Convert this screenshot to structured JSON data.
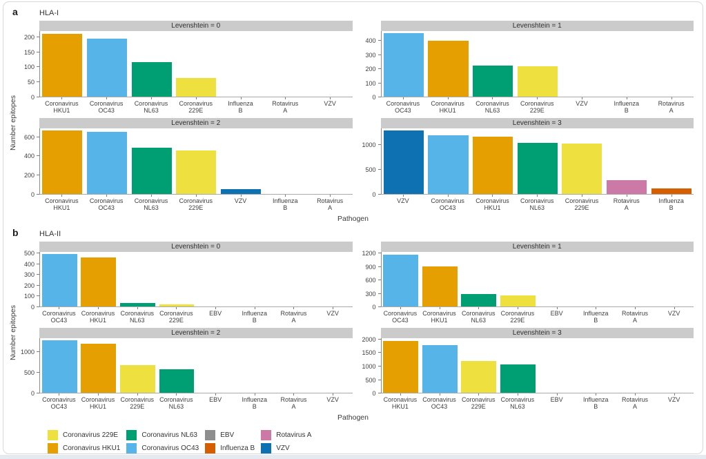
{
  "figure": {
    "panel_a_label": "a",
    "panel_a_title": "HLA-I",
    "panel_b_label": "b",
    "panel_b_title": "HLA-II",
    "ylabel": "Number epitopes",
    "xlabel": "Pathogen"
  },
  "palette": {
    "Coronavirus 229E": "#EDE03F",
    "Coronavirus HKU1": "#E69F00",
    "Coronavirus NL63": "#009E73",
    "Coronavirus OC43": "#56B4E9",
    "EBV": "#8E8E8E",
    "Influenza B": "#D55E00",
    "Rotavirus A": "#CC79A7",
    "VZV": "#0E72B2"
  },
  "legend": {
    "columns": [
      [
        "Coronavirus 229E",
        "Coronavirus HKU1"
      ],
      [
        "Coronavirus NL63",
        "Coronavirus OC43"
      ],
      [
        "EBV",
        "Influenza B"
      ],
      [
        "Rotavirus A",
        "VZV"
      ]
    ]
  },
  "chart_data": [
    {
      "id": "a",
      "type": "bar",
      "title": "HLA-I",
      "ylabel": "Number epitopes",
      "xlabel": "Pathogen",
      "legend_position": "bottom",
      "grid": false,
      "facets": [
        {
          "strip": "Levenshtein = 0",
          "yticks": [
            0,
            50,
            100,
            150,
            200
          ],
          "ymax": 220,
          "categories": [
            "Coronavirus HKU1",
            "Coronavirus OC43",
            "Coronavirus NL63",
            "Coronavirus 229E",
            "Influenza B",
            "Rotavirus A",
            "VZV"
          ],
          "values": [
            210,
            195,
            115,
            62,
            0,
            0,
            0
          ]
        },
        {
          "strip": "Levenshtein = 1",
          "yticks": [
            0,
            100,
            200,
            300,
            400
          ],
          "ymax": 470,
          "categories": [
            "Coronavirus OC43",
            "Coronavirus HKU1",
            "Coronavirus NL63",
            "Coronavirus 229E",
            "VZV",
            "Influenza B",
            "Rotavirus A"
          ],
          "values": [
            455,
            400,
            222,
            218,
            0,
            0,
            0
          ]
        },
        {
          "strip": "Levenshtein = 2",
          "yticks": [
            0,
            200,
            400,
            600
          ],
          "ymax": 690,
          "categories": [
            "Coronavirus HKU1",
            "Coronavirus OC43",
            "Coronavirus NL63",
            "Coronavirus 229E",
            "VZV",
            "Influenza B",
            "Rotavirus A"
          ],
          "values": [
            665,
            652,
            490,
            455,
            50,
            0,
            0
          ]
        },
        {
          "strip": "Levenshtein = 3",
          "yticks": [
            0,
            500,
            1000
          ],
          "ymax": 1340,
          "categories": [
            "VZV",
            "Coronavirus OC43",
            "Coronavirus HKU1",
            "Coronavirus NL63",
            "Coronavirus 229E",
            "Rotavirus A",
            "Influenza B"
          ],
          "values": [
            1300,
            1205,
            1165,
            1040,
            1025,
            280,
            120
          ]
        }
      ]
    },
    {
      "id": "b",
      "type": "bar",
      "title": "HLA-II",
      "ylabel": "Number epitopes",
      "xlabel": "Pathogen",
      "legend_position": "bottom",
      "grid": false,
      "facets": [
        {
          "strip": "Levenshtein = 0",
          "yticks": [
            0,
            100,
            200,
            300,
            400,
            500
          ],
          "ymax": 515,
          "categories": [
            "Coronavirus OC43",
            "Coronavirus HKU1",
            "Coronavirus NL63",
            "Coronavirus 229E",
            "EBV",
            "Influenza B",
            "Rotavirus A",
            "VZV"
          ],
          "values": [
            495,
            465,
            30,
            18,
            0,
            0,
            0,
            0
          ]
        },
        {
          "strip": "Levenshtein = 1",
          "yticks": [
            0,
            300,
            600,
            900,
            1200
          ],
          "ymax": 1235,
          "categories": [
            "Coronavirus OC43",
            "Coronavirus HKU1",
            "Coronavirus NL63",
            "Coronavirus 229E",
            "EBV",
            "Influenza B",
            "Rotavirus A",
            "VZV"
          ],
          "values": [
            1175,
            905,
            280,
            245,
            0,
            0,
            0,
            0
          ]
        },
        {
          "strip": "Levenshtein = 2",
          "yticks": [
            0,
            500,
            1000
          ],
          "ymax": 1335,
          "categories": [
            "Coronavirus OC43",
            "Coronavirus HKU1",
            "Coronavirus 229E",
            "Coronavirus NL63",
            "EBV",
            "Influenza B",
            "Rotavirus A",
            "VZV"
          ],
          "values": [
            1285,
            1205,
            680,
            580,
            0,
            0,
            0,
            0
          ]
        },
        {
          "strip": "Levenshtein = 3",
          "yticks": [
            0,
            500,
            1000,
            1500,
            2000
          ],
          "ymax": 2050,
          "categories": [
            "Coronavirus HKU1",
            "Coronavirus OC43",
            "Coronavirus 229E",
            "Coronavirus NL63",
            "EBV",
            "Influenza B",
            "Rotavirus A",
            "VZV"
          ],
          "values": [
            1950,
            1780,
            1185,
            1055,
            0,
            0,
            0,
            0
          ]
        }
      ]
    }
  ]
}
